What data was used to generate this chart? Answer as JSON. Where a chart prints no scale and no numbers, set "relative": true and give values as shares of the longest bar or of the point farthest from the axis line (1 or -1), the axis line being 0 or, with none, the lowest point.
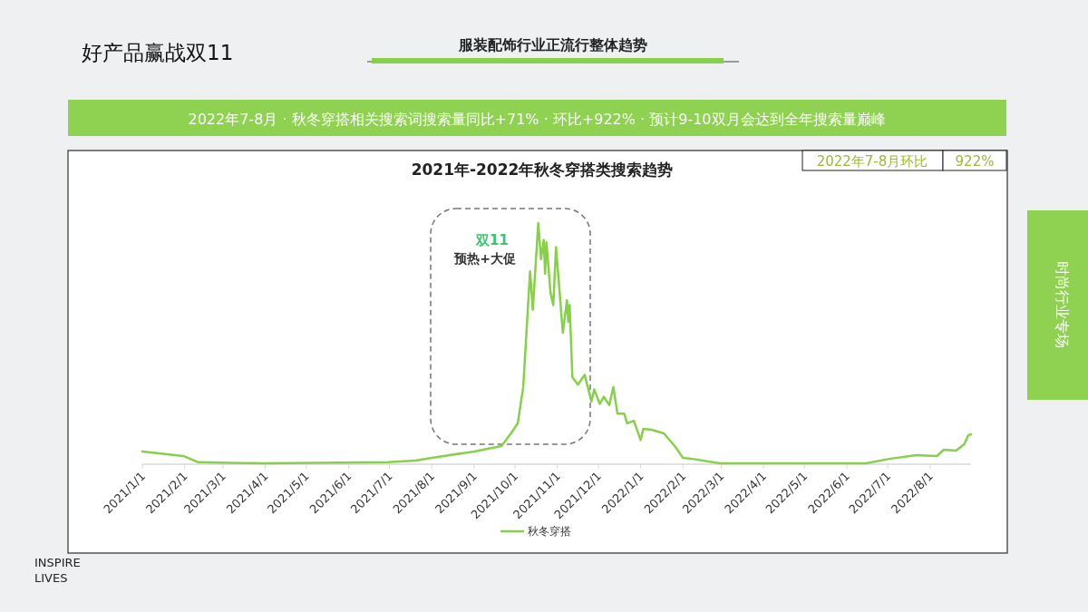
{
  "chart_data": {
    "type": "line",
    "title": "2021年-2022年秋冬穿搭类搜索趋势",
    "annotations": [
      "好产品赢战双11",
      "服装配饰行业正流行整体趋势",
      "2022年7-8月 · 秋冬穿搭相关搜索词搜索量同比+71% · 环比+922% · 预计9-10双月会达到全年搜索量巅峰",
      "2022年7-8月环比",
      "922%",
      "双11",
      "预热+大促",
      "时尚行业专场",
      "INSPIRE\nLIVES"
    ],
    "relative": true,
    "x": [
      "2021-01-01",
      "2021-01-31",
      "2021-02-11",
      "2021-04-01",
      "2021-06-30",
      "2021-07-20",
      "2021-08-01",
      "2021-09-01",
      "2021-09-21",
      "2021-09-28",
      "2021-10-03",
      "2021-10-07",
      "2021-10-10",
      "2021-10-12",
      "2021-10-14",
      "2021-10-18",
      "2021-10-20",
      "2021-10-22",
      "2021-10-23",
      "2021-10-24",
      "2021-10-27",
      "2021-10-29",
      "2021-10-31",
      "2021-11-05",
      "2021-11-08",
      "2021-11-09",
      "2021-11-10",
      "2021-11-12",
      "2021-11-16",
      "2021-11-21",
      "2021-11-26",
      "2021-11-28",
      "2021-12-02",
      "2021-12-05",
      "2021-12-09",
      "2021-12-12",
      "2021-12-15",
      "2021-12-20",
      "2021-12-22",
      "2021-12-27",
      "2022-01-01",
      "2022-01-03",
      "2022-01-09",
      "2022-01-18",
      "2022-01-26",
      "2022-02-01",
      "2022-02-07",
      "2022-02-28",
      "2022-06-15",
      "2022-07-03",
      "2022-07-22",
      "2022-08-06",
      "2022-08-11",
      "2022-08-20",
      "2022-08-26",
      "2022-08-29",
      "2022-08-31"
    ],
    "series": [
      {
        "name": "秋冬穿搭",
        "color": "#86d04a",
        "values": [
          0.053,
          0.034,
          0.008,
          0.004,
          0.008,
          0.015,
          0.026,
          0.053,
          0.075,
          0.128,
          0.17,
          0.32,
          0.61,
          0.8,
          0.64,
          1.0,
          0.85,
          0.93,
          0.79,
          0.92,
          0.71,
          0.66,
          0.9,
          0.545,
          0.68,
          0.59,
          0.66,
          0.36,
          0.33,
          0.37,
          0.26,
          0.31,
          0.25,
          0.28,
          0.245,
          0.32,
          0.21,
          0.21,
          0.17,
          0.18,
          0.1,
          0.147,
          0.143,
          0.128,
          0.075,
          0.026,
          0.023,
          0.004,
          0.004,
          0.023,
          0.038,
          0.034,
          0.06,
          0.056,
          0.083,
          0.12,
          0.124
        ]
      }
    ],
    "xlim": [
      "2021-01-01",
      "2022-08-31"
    ],
    "xticks": [
      {
        "value": "2021-01-01",
        "label": "2021/1/1"
      },
      {
        "value": "2021-02-01",
        "label": "2021/2/1"
      },
      {
        "value": "2021-03-01",
        "label": "2021/3/1"
      },
      {
        "value": "2021-04-01",
        "label": "2021/4/1"
      },
      {
        "value": "2021-05-01",
        "label": "2021/5/1"
      },
      {
        "value": "2021-06-01",
        "label": "2021/6/1"
      },
      {
        "value": "2021-07-01",
        "label": "2021/7/1"
      },
      {
        "value": "2021-08-01",
        "label": "2021/8/1"
      },
      {
        "value": "2021-09-01",
        "label": "2021/9/1"
      },
      {
        "value": "2021-10-01",
        "label": "2021/10/1"
      },
      {
        "value": "2021-11-01",
        "label": "2021/11/1"
      },
      {
        "value": "2021-12-01",
        "label": "2021/12/1"
      },
      {
        "value": "2022-01-01",
        "label": "2022/1/1"
      },
      {
        "value": "2022-02-01",
        "label": "2022/2/1"
      },
      {
        "value": "2022-03-01",
        "label": "2022/3/1"
      },
      {
        "value": "2022-04-01",
        "label": "2022/4/1"
      },
      {
        "value": "2022-05-01",
        "label": "2022/5/1"
      },
      {
        "value": "2022-06-01",
        "label": "2022/6/1"
      },
      {
        "value": "2022-07-01",
        "label": "2022/7/1"
      },
      {
        "value": "2022-08-01",
        "label": "2022/8/1"
      }
    ],
    "legend": "bottom"
  }
}
